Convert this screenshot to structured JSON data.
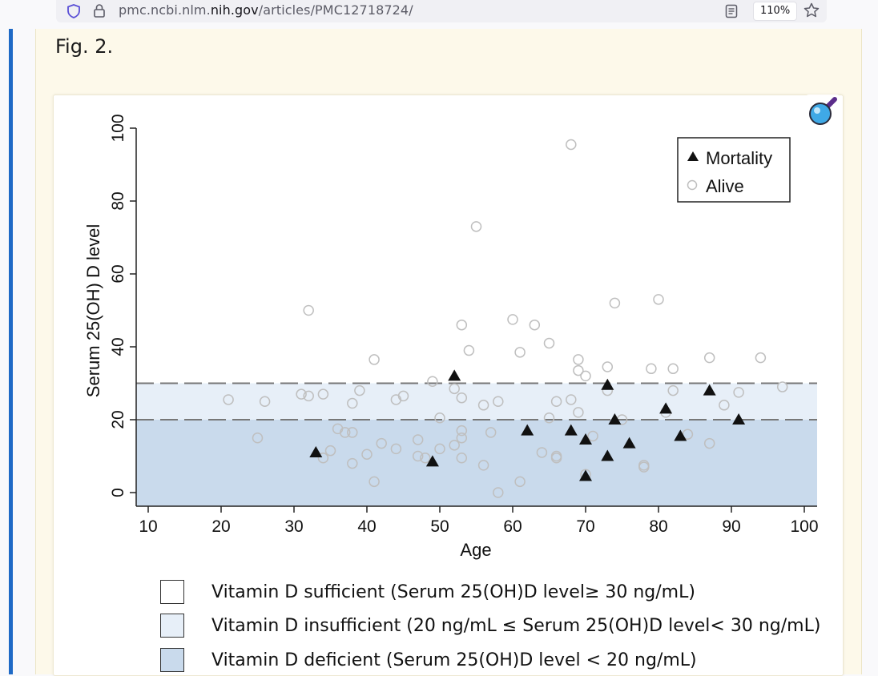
{
  "browser": {
    "url_prefix": "pmc.ncbi.nlm.",
    "url_domain": "nih.gov",
    "url_path": "/articles/PMC12718724/",
    "zoom_level": "110%",
    "icons": [
      "shield-icon",
      "lock-icon",
      "reader-view-icon",
      "bookmark-star-icon"
    ]
  },
  "figure": {
    "label": "Fig. 2.",
    "zoom_icon": "magnifier-icon"
  },
  "colors": {
    "sufficient": "#ffffff",
    "insufficient": "#e7eff8",
    "deficient": "#c9daec",
    "marker_mortality": "#111111",
    "marker_alive": "#bfbfbf",
    "threshold_line": "#777777"
  },
  "chart_data": {
    "type": "scatter",
    "title": "",
    "xlabel": "Age",
    "ylabel": "Serum 25(OH) D level",
    "xlim": [
      10,
      102
    ],
    "ylim": [
      -3,
      101
    ],
    "xticks": [
      10,
      20,
      30,
      40,
      50,
      60,
      70,
      80,
      90,
      100
    ],
    "yticks": [
      0,
      20,
      40,
      60,
      80,
      100
    ],
    "thresholds": [
      20,
      30
    ],
    "grid": false,
    "legend_position": "top-right",
    "series": [
      {
        "name": "Mortality",
        "marker": "triangle",
        "points": [
          [
            33,
            11
          ],
          [
            49,
            8.5
          ],
          [
            52,
            32
          ],
          [
            62,
            17
          ],
          [
            68,
            17
          ],
          [
            70,
            14.5
          ],
          [
            70,
            4.5
          ],
          [
            73,
            10
          ],
          [
            73,
            29.5
          ],
          [
            74,
            20
          ],
          [
            76,
            13.5
          ],
          [
            81,
            23
          ],
          [
            83,
            15.5
          ],
          [
            87,
            28
          ],
          [
            91,
            20
          ]
        ]
      },
      {
        "name": "Alive",
        "marker": "circle",
        "points": [
          [
            21,
            25.5
          ],
          [
            25,
            15
          ],
          [
            26,
            25
          ],
          [
            31,
            27
          ],
          [
            32,
            26.5
          ],
          [
            32,
            50
          ],
          [
            34,
            27
          ],
          [
            34,
            9.5
          ],
          [
            35,
            11.5
          ],
          [
            36,
            17.5
          ],
          [
            37,
            16.5
          ],
          [
            38,
            16.5
          ],
          [
            38,
            8
          ],
          [
            38,
            24.5
          ],
          [
            39,
            28
          ],
          [
            40,
            10.5
          ],
          [
            41,
            3
          ],
          [
            41,
            36.5
          ],
          [
            42,
            13.5
          ],
          [
            44,
            12
          ],
          [
            44,
            25.5
          ],
          [
            45,
            26.5
          ],
          [
            47,
            14.5
          ],
          [
            47,
            10
          ],
          [
            48,
            9.5
          ],
          [
            49,
            30.5
          ],
          [
            50,
            20.5
          ],
          [
            50,
            12
          ],
          [
            52,
            13
          ],
          [
            52,
            28.5
          ],
          [
            53,
            26
          ],
          [
            53,
            17
          ],
          [
            53,
            15
          ],
          [
            53,
            9.5
          ],
          [
            53,
            46
          ],
          [
            54,
            39
          ],
          [
            55,
            73
          ],
          [
            56,
            7.5
          ],
          [
            56,
            24
          ],
          [
            57,
            16.5
          ],
          [
            58,
            0
          ],
          [
            58,
            25
          ],
          [
            60,
            47.5
          ],
          [
            61,
            38.5
          ],
          [
            61,
            3
          ],
          [
            63,
            46
          ],
          [
            64,
            11
          ],
          [
            65,
            41
          ],
          [
            65,
            20.5
          ],
          [
            66,
            25
          ],
          [
            66,
            10
          ],
          [
            66,
            9.5
          ],
          [
            68,
            95.5
          ],
          [
            68,
            25.5
          ],
          [
            69,
            36.5
          ],
          [
            69,
            33.5
          ],
          [
            69,
            22
          ],
          [
            70,
            32
          ],
          [
            70,
            5
          ],
          [
            71,
            15.5
          ],
          [
            73,
            34.5
          ],
          [
            73,
            28
          ],
          [
            74,
            52
          ],
          [
            75,
            20
          ],
          [
            78,
            7.5
          ],
          [
            78,
            7
          ],
          [
            79,
            34
          ],
          [
            80,
            53
          ],
          [
            81,
            22
          ],
          [
            82,
            34
          ],
          [
            82,
            28
          ],
          [
            84,
            16
          ],
          [
            87,
            37
          ],
          [
            87,
            13.5
          ],
          [
            89,
            24
          ],
          [
            91,
            27.5
          ],
          [
            94,
            37
          ],
          [
            97,
            29
          ]
        ]
      }
    ],
    "category_legend": [
      {
        "label": "Vitamin D sufficient (Serum 25(OH)D level≥ 30 ng/mL)",
        "color": "#ffffff"
      },
      {
        "label": "Vitamin D insufficient (20 ng/mL ≤ Serum 25(OH)D level< 30 ng/mL)",
        "color": "#e7eff8"
      },
      {
        "label": "Vitamin D deficient (Serum 25(OH)D level < 20 ng/mL)",
        "color": "#c9daec"
      }
    ]
  }
}
